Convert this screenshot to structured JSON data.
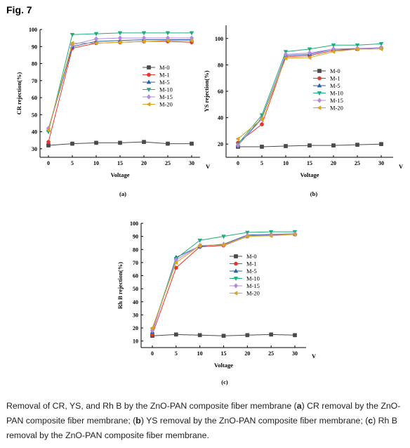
{
  "figure_label": "Fig. 7",
  "caption": {
    "t1": "Removal of CR, YS, and Rh B by the ZnO-PAN composite fiber membrane (",
    "b1": "a",
    "t2": ") CR removal by the ZnO-PAN composite fiber membrane; (",
    "b2": "b",
    "t3": ") YS removal by the ZnO-PAN composite fiber membrane; (",
    "b3": "c",
    "t4": ") Rh B removal by the ZnO-PAN composite fiber membrane."
  },
  "colors": {
    "M-0": "#4a4a4a",
    "M-1": "#e2372b",
    "M-5": "#2a5fb0",
    "M-10": "#1fae7a",
    "M-15": "#b48ae0",
    "M-20": "#d9a520"
  },
  "chart_data": [
    {
      "type": "line",
      "panel": "(a)",
      "xlabel": "Voltage",
      "x_unit": "V",
      "ylabel": "CR rejection(%)",
      "x": [
        0,
        5,
        10,
        15,
        20,
        25,
        30
      ],
      "xlim": [
        0,
        30
      ],
      "ylim": [
        25,
        100
      ],
      "yticks": [
        30,
        40,
        50,
        60,
        70,
        80,
        90,
        100
      ],
      "legend_position": "middle-right",
      "series": [
        {
          "name": "M-0",
          "marker": "square",
          "values": [
            32,
            33,
            33.5,
            33.5,
            34,
            33,
            33
          ]
        },
        {
          "name": "M-1",
          "marker": "circle",
          "values": [
            34,
            89,
            92,
            92.5,
            93,
            93,
            92.5
          ]
        },
        {
          "name": "M-5",
          "marker": "triangle-up",
          "values": [
            41,
            90,
            93,
            93.5,
            94,
            94,
            94
          ]
        },
        {
          "name": "M-10",
          "marker": "triangle-down",
          "values": [
            40,
            97,
            97.5,
            98,
            98,
            98,
            98
          ]
        },
        {
          "name": "M-15",
          "marker": "diamond",
          "values": [
            42,
            91,
            94.5,
            95,
            95,
            95,
            95
          ]
        },
        {
          "name": "M-20",
          "marker": "triangle-left",
          "values": [
            41,
            92,
            92,
            92.5,
            93,
            93.5,
            93.5
          ]
        }
      ]
    },
    {
      "type": "line",
      "panel": "(b)",
      "xlabel": "Voltage",
      "x_unit": "V",
      "ylabel": "YS rejection(%)",
      "x": [
        0,
        5,
        10,
        15,
        20,
        25,
        30
      ],
      "xlim": [
        0,
        30
      ],
      "ylim": [
        10,
        110
      ],
      "yticks": [
        20,
        40,
        60,
        80,
        100
      ],
      "legend_position": "middle-right",
      "series": [
        {
          "name": "M-0",
          "marker": "square",
          "values": [
            18,
            18,
            18.5,
            19,
            19,
            19.5,
            20
          ]
        },
        {
          "name": "M-1",
          "marker": "circle",
          "values": [
            21,
            35,
            86,
            87,
            91,
            92,
            93
          ]
        },
        {
          "name": "M-5",
          "marker": "triangle-up",
          "values": [
            19,
            40,
            87,
            88,
            92,
            92,
            93
          ]
        },
        {
          "name": "M-10",
          "marker": "triangle-down",
          "values": [
            20,
            42,
            90,
            92,
            95,
            95,
            96
          ]
        },
        {
          "name": "M-15",
          "marker": "diamond",
          "values": [
            19,
            39,
            88,
            89,
            92,
            92.5,
            93
          ]
        },
        {
          "name": "M-20",
          "marker": "triangle-left",
          "values": [
            24,
            39,
            85,
            85.5,
            90,
            92,
            92
          ]
        }
      ]
    },
    {
      "type": "line",
      "panel": "(c)",
      "xlabel": "Voltage",
      "x_unit": "V",
      "ylabel": "Rh B rejection(%)",
      "x": [
        0,
        5,
        10,
        15,
        20,
        25,
        30
      ],
      "xlim": [
        0,
        30
      ],
      "ylim": [
        5,
        100
      ],
      "yticks": [
        10,
        20,
        30,
        40,
        50,
        60,
        70,
        80,
        90,
        100
      ],
      "legend_position": "middle-right",
      "series": [
        {
          "name": "M-0",
          "marker": "square",
          "values": [
            14,
            15,
            14.5,
            14,
            14.5,
            15,
            14.5
          ]
        },
        {
          "name": "M-1",
          "marker": "circle",
          "values": [
            15,
            66,
            82,
            83,
            90,
            91,
            91.5
          ]
        },
        {
          "name": "M-5",
          "marker": "triangle-up",
          "values": [
            17,
            74,
            82.5,
            84,
            91,
            91.5,
            92
          ]
        },
        {
          "name": "M-10",
          "marker": "triangle-down",
          "values": [
            19,
            73,
            87,
            90,
            93,
            93.5,
            93.5
          ]
        },
        {
          "name": "M-15",
          "marker": "diamond",
          "values": [
            18,
            72,
            83,
            83.5,
            90.5,
            91,
            92
          ]
        },
        {
          "name": "M-20",
          "marker": "triangle-left",
          "values": [
            20,
            70,
            83,
            83.5,
            90,
            90.5,
            91.5
          ]
        }
      ]
    }
  ]
}
